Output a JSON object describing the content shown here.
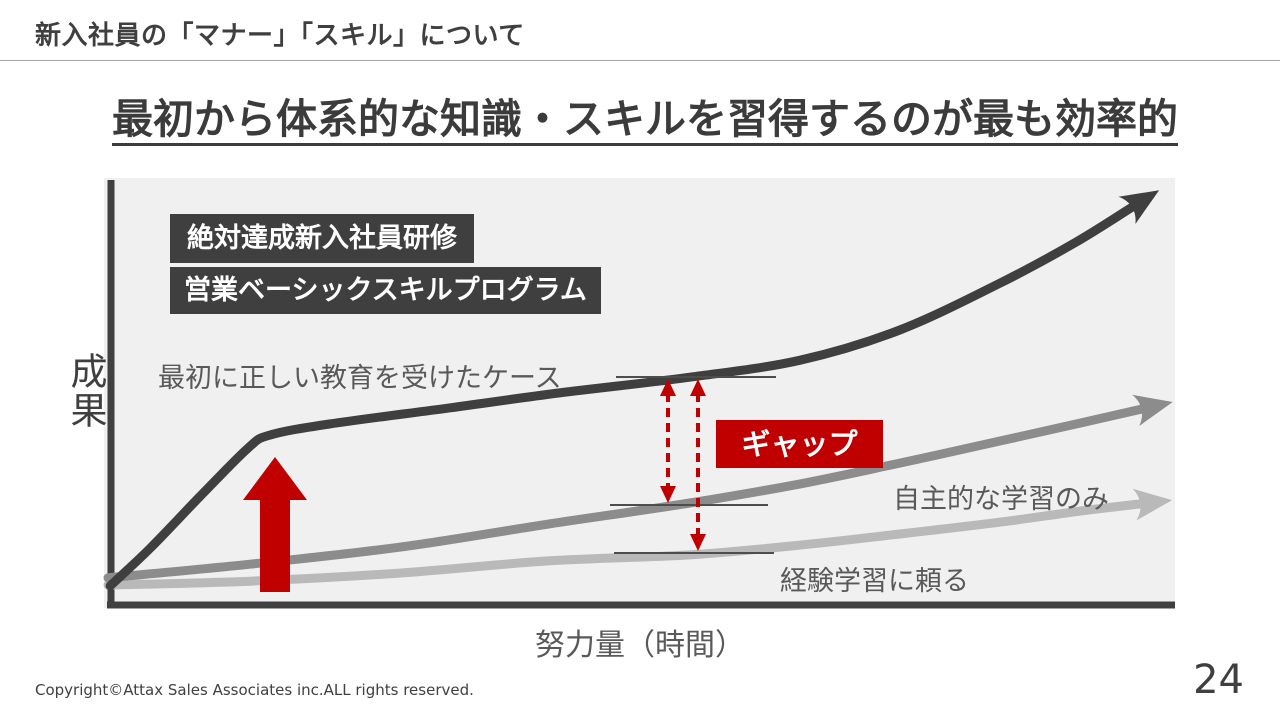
{
  "slide": {
    "header_title": "新入社員の「マナー」「スキル」について",
    "main_title": "最初から体系的な知識・スキルを習得するのが最も効率的",
    "footer_copyright": "Copyright©Attax Sales Associates inc.ALL rights reserved.",
    "page_number": "24"
  },
  "colors": {
    "accent_red": "#c00000",
    "dark_gray": "#3f3f3f",
    "mid_gray": "#8c8c8c",
    "light_gray": "#b9b9b9",
    "chart_background": "#f0f0f0"
  },
  "chart_data": {
    "type": "line",
    "title": "最初から体系的な知識・スキルを習得するのが最も効率的",
    "xlabel": "努力量（時間）",
    "ylabel": "成果",
    "axes_numeric": false,
    "grid": false,
    "legend_position": "labels-on-curves",
    "value_units": "normalized 0-100 (conceptual curves, no numeric ticks shown)",
    "series": [
      {
        "name": "最初に正しい教育を受けたケース",
        "color": "#3f3f3f",
        "points": [
          [
            0.2,
            4.5
          ],
          [
            4.0,
            13.4
          ],
          [
            8.7,
            25.6
          ],
          [
            13.2,
            36.9
          ],
          [
            15.3,
            40.0
          ],
          [
            20.9,
            42.6
          ],
          [
            32.3,
            46.4
          ],
          [
            42.6,
            49.9
          ],
          [
            54.9,
            53.6
          ],
          [
            65.3,
            57.6
          ],
          [
            74.7,
            64.7
          ],
          [
            84.2,
            75.8
          ],
          [
            91.2,
            85.2
          ],
          [
            96.6,
            93.6
          ]
        ]
      },
      {
        "name": "自主的な学習のみ",
        "color": "#8c8c8c",
        "points": [
          [
            0,
            6.4
          ],
          [
            13.4,
            9.6
          ],
          [
            27.5,
            13.6
          ],
          [
            41.7,
            19.1
          ],
          [
            54.9,
            24.0
          ],
          [
            65.3,
            28.5
          ],
          [
            74.7,
            33.4
          ],
          [
            84.2,
            38.6
          ],
          [
            91.7,
            42.8
          ],
          [
            97.5,
            46.1
          ]
        ]
      },
      {
        "name": "経験学習に頼る",
        "color": "#b9b9b9",
        "points": [
          [
            0,
            4.7
          ],
          [
            13.4,
            5.6
          ],
          [
            27.5,
            7.5
          ],
          [
            41.7,
            10.4
          ],
          [
            54.9,
            11.8
          ],
          [
            65.3,
            14.1
          ],
          [
            74.7,
            16.7
          ],
          [
            84.2,
            19.5
          ],
          [
            91.7,
            22.1
          ],
          [
            97.4,
            23.8
          ]
        ]
      }
    ],
    "annotations": {
      "training_badges": [
        "絶対達成新入社員研修",
        "営業ベーシックスキルプログラム"
      ],
      "gap_label": "ギャップ"
    }
  }
}
